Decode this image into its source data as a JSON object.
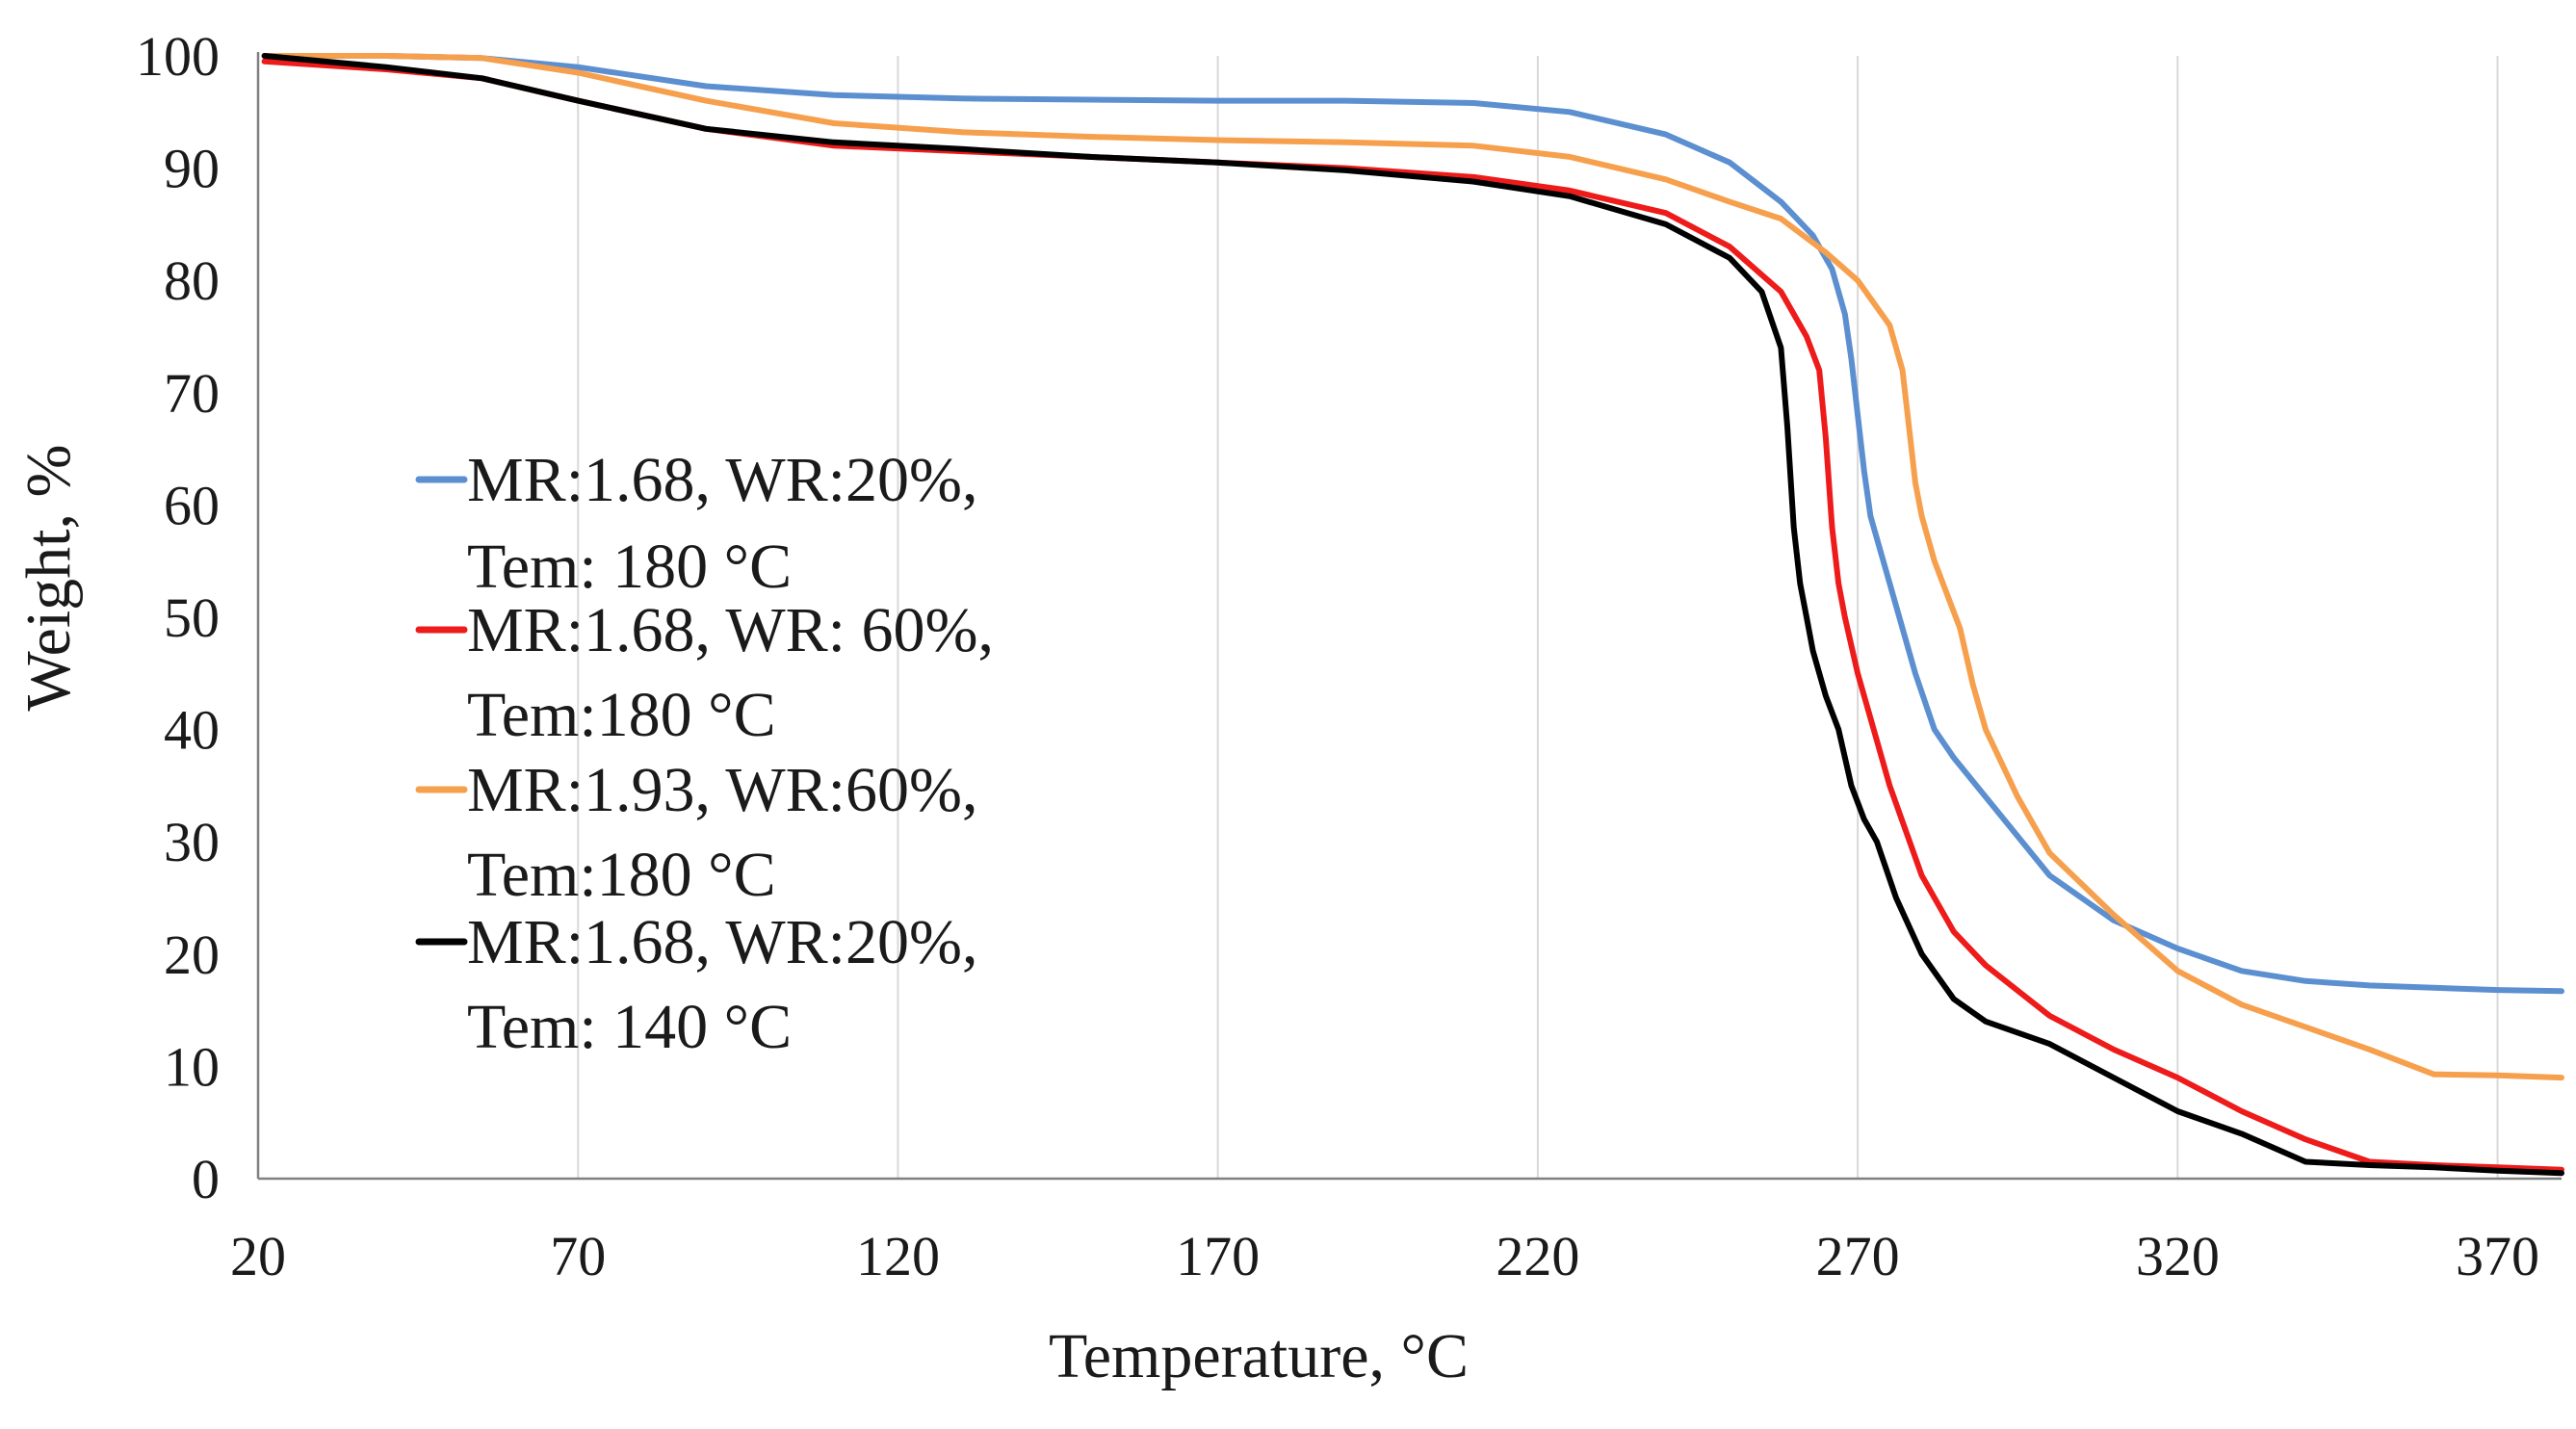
{
  "chart_data": {
    "type": "line",
    "title": "",
    "xlabel": "Temperature, °C",
    "ylabel": "Weight, %",
    "xlim": [
      20,
      380
    ],
    "ylim": [
      0,
      100
    ],
    "x_ticks": [
      20,
      70,
      120,
      170,
      220,
      270,
      320,
      370
    ],
    "y_ticks": [
      0,
      10,
      20,
      30,
      40,
      50,
      60,
      70,
      80,
      90,
      100
    ],
    "grid": "vertical",
    "legend_position": "left",
    "series": [
      {
        "name": "MR:1.68, WR:20%, Tem: 180 °C",
        "legend_lines": [
          "MR:1.68, WR:20%,",
          "Tem: 180 °C"
        ],
        "color": "#5b8fd0",
        "x": [
          21,
          40,
          55,
          70,
          90,
          110,
          130,
          150,
          170,
          190,
          210,
          225,
          240,
          250,
          258,
          263,
          266,
          268,
          269,
          270,
          271,
          272,
          274,
          276,
          279,
          282,
          285,
          290,
          300,
          310,
          320,
          330,
          340,
          350,
          360,
          370,
          380
        ],
        "y": [
          100,
          100,
          99.8,
          99,
          97.3,
          96.5,
          96.2,
          96.1,
          96,
          96,
          95.8,
          95,
          93,
          90.5,
          87,
          84,
          81,
          77,
          73,
          68,
          63,
          59,
          55,
          51,
          45,
          40,
          37.5,
          34,
          27,
          23,
          20.5,
          18.5,
          17.6,
          17.2,
          17,
          16.8,
          16.7
        ]
      },
      {
        "name": "MR:1.68, WR: 60%, Tem:180 °C",
        "legend_lines": [
          "MR:1.68, WR: 60%,",
          "Tem:180 °C"
        ],
        "color": "#ee1b1b",
        "x": [
          21,
          40,
          55,
          70,
          90,
          110,
          130,
          150,
          170,
          190,
          210,
          225,
          240,
          250,
          258,
          262,
          264,
          265,
          266,
          267,
          268,
          270,
          272,
          275,
          280,
          285,
          290,
          300,
          310,
          320,
          330,
          340,
          350,
          360,
          370,
          380
        ],
        "y": [
          99.5,
          98.8,
          98,
          96,
          93.5,
          92,
          91.5,
          91,
          90.5,
          90,
          89.2,
          88,
          86,
          83,
          79,
          75,
          72,
          66,
          58,
          53,
          50,
          45,
          41,
          35,
          27,
          22,
          19,
          14.5,
          11.5,
          9,
          6,
          3.5,
          1.5,
          1.2,
          1,
          0.8
        ]
      },
      {
        "name": "MR:1.93, WR:60%, Tem:180 °C",
        "legend_lines": [
          "MR:1.93, WR:60%,",
          "Tem:180 °C"
        ],
        "color": "#f6a04d",
        "x": [
          21,
          40,
          55,
          70,
          90,
          110,
          130,
          150,
          170,
          190,
          210,
          225,
          240,
          250,
          258,
          265,
          270,
          275,
          277,
          278,
          279,
          280,
          282,
          284,
          286,
          288,
          290,
          295,
          300,
          310,
          320,
          330,
          340,
          350,
          360,
          370,
          380
        ],
        "y": [
          100,
          100,
          99.8,
          98.5,
          96,
          94,
          93.2,
          92.8,
          92.5,
          92.3,
          92,
          91,
          89,
          87,
          85.5,
          82.5,
          80,
          76,
          72,
          67,
          62,
          59,
          55,
          52,
          49,
          44,
          40,
          34,
          29,
          23.5,
          18.5,
          15.5,
          13.5,
          11.5,
          9.3,
          9.2,
          9
        ]
      },
      {
        "name": "MR:1.68, WR:20%, Tem: 140 °C",
        "legend_lines": [
          "MR:1.68, WR:20%,",
          "Tem: 140 °C"
        ],
        "color": "#000000",
        "x": [
          21,
          40,
          55,
          70,
          90,
          110,
          130,
          150,
          170,
          190,
          210,
          225,
          240,
          250,
          255,
          258,
          259,
          260,
          261,
          262,
          263,
          265,
          267,
          269,
          271,
          273,
          276,
          280,
          285,
          290,
          300,
          310,
          320,
          330,
          340,
          350,
          360,
          370,
          380
        ],
        "y": [
          100,
          99,
          98,
          96,
          93.5,
          92.3,
          91.7,
          91,
          90.5,
          89.8,
          88.8,
          87.5,
          85,
          82,
          79,
          74,
          67,
          58,
          53,
          50,
          47,
          43,
          40,
          35,
          32,
          30,
          25,
          20,
          16,
          14,
          12,
          9,
          6,
          4,
          1.5,
          1.2,
          1,
          0.7,
          0.5
        ]
      }
    ]
  }
}
